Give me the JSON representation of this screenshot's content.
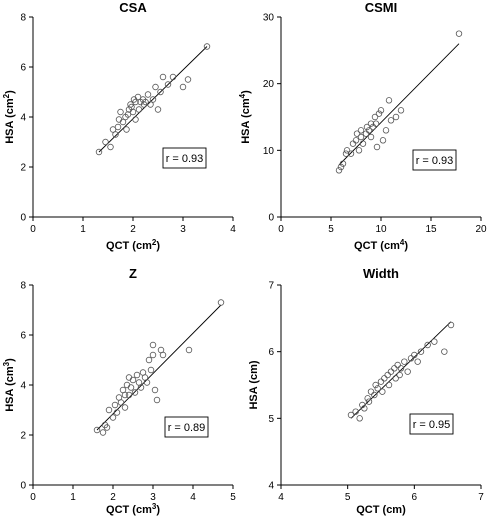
{
  "chart_data": [
    {
      "type": "scatter",
      "title": "CSA",
      "xlabel": "QCT (cm²)",
      "xlabel_main": "QCT (cm",
      "xlabel_sup": "2",
      "xlabel_end": ")",
      "ylabel": "HSA (cm²)",
      "ylabel_main": "HSA (cm",
      "ylabel_sup": "2",
      "ylabel_end": ")",
      "xlim": [
        0,
        4
      ],
      "ylim": [
        0,
        8
      ],
      "xticks": [
        0,
        1,
        2,
        3,
        4
      ],
      "yticks": [
        0,
        2,
        4,
        6,
        8
      ],
      "annotation": "r = 0.93",
      "fit": {
        "x": [
          1.32,
          3.48
        ],
        "y": [
          2.6,
          6.82
        ]
      },
      "points": {
        "x": [
          1.32,
          1.45,
          1.55,
          1.6,
          1.65,
          1.7,
          1.72,
          1.75,
          1.8,
          1.85,
          1.87,
          1.9,
          1.92,
          1.95,
          1.97,
          2.0,
          2.02,
          2.05,
          2.05,
          2.1,
          2.12,
          2.15,
          2.2,
          2.22,
          2.25,
          2.3,
          2.35,
          2.4,
          2.45,
          2.5,
          2.55,
          2.6,
          2.7,
          2.8,
          3.0,
          3.1,
          3.48
        ],
        "y": [
          2.6,
          3.0,
          2.8,
          3.5,
          3.3,
          3.6,
          3.9,
          4.2,
          3.8,
          4.0,
          3.5,
          4.1,
          4.3,
          4.5,
          4.4,
          4.2,
          4.7,
          4.6,
          3.9,
          4.8,
          4.3,
          4.6,
          4.7,
          4.5,
          4.6,
          4.9,
          4.5,
          4.7,
          5.2,
          4.3,
          5.0,
          5.6,
          5.3,
          5.6,
          5.2,
          5.5,
          6.82
        ]
      }
    },
    {
      "type": "scatter",
      "title": "CSMI",
      "xlabel": "QCT (cm⁴)",
      "xlabel_main": "QCT (cm",
      "xlabel_sup": "4",
      "xlabel_end": ")",
      "ylabel": "HSA (cm⁴)",
      "ylabel_main": "HSA (cm",
      "ylabel_sup": "4",
      "ylabel_end": ")",
      "xlim": [
        0,
        20
      ],
      "ylim": [
        0,
        30
      ],
      "xticks": [
        0,
        5,
        10,
        15,
        20
      ],
      "yticks": [
        0,
        10,
        20,
        30
      ],
      "annotation": "r = 0.93",
      "fit": {
        "x": [
          5.8,
          17.8
        ],
        "y": [
          7.8,
          26.0
        ]
      },
      "points": {
        "x": [
          5.8,
          6.0,
          6.2,
          6.5,
          6.6,
          7.0,
          7.2,
          7.5,
          7.6,
          7.8,
          8.0,
          8.0,
          8.2,
          8.5,
          8.6,
          8.8,
          9.0,
          9.0,
          9.2,
          9.4,
          9.5,
          9.6,
          9.8,
          10.0,
          10.2,
          10.5,
          10.8,
          11.0,
          11.5,
          12.0,
          17.8
        ],
        "y": [
          7.0,
          7.5,
          8.0,
          9.5,
          10.0,
          9.5,
          11.0,
          11.5,
          12.5,
          10.0,
          12.0,
          13.0,
          11.0,
          12.5,
          13.5,
          13.0,
          12.0,
          14.0,
          13.5,
          15.0,
          14.0,
          10.5,
          15.5,
          16.0,
          11.5,
          13.0,
          17.5,
          14.5,
          15.0,
          16.0,
          27.5
        ]
      }
    },
    {
      "type": "scatter",
      "title": "Z",
      "xlabel": "QCT (cm³)",
      "xlabel_main": "QCT (cm",
      "xlabel_sup": "3",
      "xlabel_end": ")",
      "ylabel": "HSA (cm³)",
      "ylabel_main": "HSA (cm",
      "ylabel_sup": "3",
      "ylabel_end": ")",
      "xlim": [
        0,
        5
      ],
      "ylim": [
        0,
        8
      ],
      "xticks": [
        0,
        1,
        2,
        3,
        4,
        5
      ],
      "yticks": [
        0,
        2,
        4,
        6,
        8
      ],
      "annotation": "r = 0.89",
      "fit": {
        "x": [
          1.6,
          4.7
        ],
        "y": [
          2.2,
          7.2
        ]
      },
      "points": {
        "x": [
          1.6,
          1.75,
          1.8,
          1.85,
          1.9,
          2.0,
          2.05,
          2.1,
          2.15,
          2.2,
          2.25,
          2.3,
          2.3,
          2.35,
          2.4,
          2.4,
          2.45,
          2.5,
          2.55,
          2.6,
          2.65,
          2.7,
          2.75,
          2.8,
          2.85,
          2.9,
          2.95,
          3.0,
          3.05,
          3.1,
          3.2,
          3.25,
          3.0,
          3.9,
          4.7
        ],
        "y": [
          2.2,
          2.1,
          2.4,
          2.3,
          3.0,
          2.7,
          3.2,
          2.9,
          3.5,
          3.3,
          3.8,
          3.1,
          3.6,
          4.0,
          3.6,
          4.3,
          3.9,
          4.2,
          3.7,
          4.4,
          4.1,
          3.9,
          4.5,
          4.3,
          4.1,
          5.0,
          4.6,
          5.2,
          3.8,
          3.4,
          5.4,
          5.2,
          5.6,
          5.4,
          7.3
        ]
      }
    },
    {
      "type": "scatter",
      "title": "Width",
      "xlabel": "QCT (cm)",
      "xlabel_main": "QCT (cm)",
      "xlabel_sup": "",
      "xlabel_end": "",
      "ylabel": "HSA (cm)",
      "ylabel_main": "HSA (cm)",
      "ylabel_sup": "",
      "ylabel_end": "",
      "xlim": [
        4,
        7
      ],
      "ylim": [
        4,
        7
      ],
      "xticks": [
        4,
        5,
        6,
        7
      ],
      "yticks": [
        4,
        5,
        6,
        7
      ],
      "annotation": "r = 0.95",
      "fit": {
        "x": [
          5.05,
          6.55
        ],
        "y": [
          5.0,
          6.45
        ]
      },
      "points": {
        "x": [
          5.05,
          5.12,
          5.18,
          5.22,
          5.25,
          5.3,
          5.32,
          5.35,
          5.4,
          5.42,
          5.45,
          5.5,
          5.52,
          5.55,
          5.6,
          5.62,
          5.65,
          5.7,
          5.72,
          5.75,
          5.78,
          5.8,
          5.85,
          5.9,
          5.95,
          6.0,
          6.05,
          6.1,
          6.2,
          6.3,
          6.45,
          6.55
        ],
        "y": [
          5.05,
          5.1,
          5.0,
          5.2,
          5.15,
          5.3,
          5.25,
          5.4,
          5.35,
          5.5,
          5.45,
          5.55,
          5.4,
          5.6,
          5.65,
          5.5,
          5.7,
          5.75,
          5.6,
          5.8,
          5.65,
          5.75,
          5.85,
          5.7,
          5.9,
          5.95,
          5.85,
          6.0,
          6.1,
          6.15,
          6.0,
          6.4
        ]
      }
    }
  ]
}
